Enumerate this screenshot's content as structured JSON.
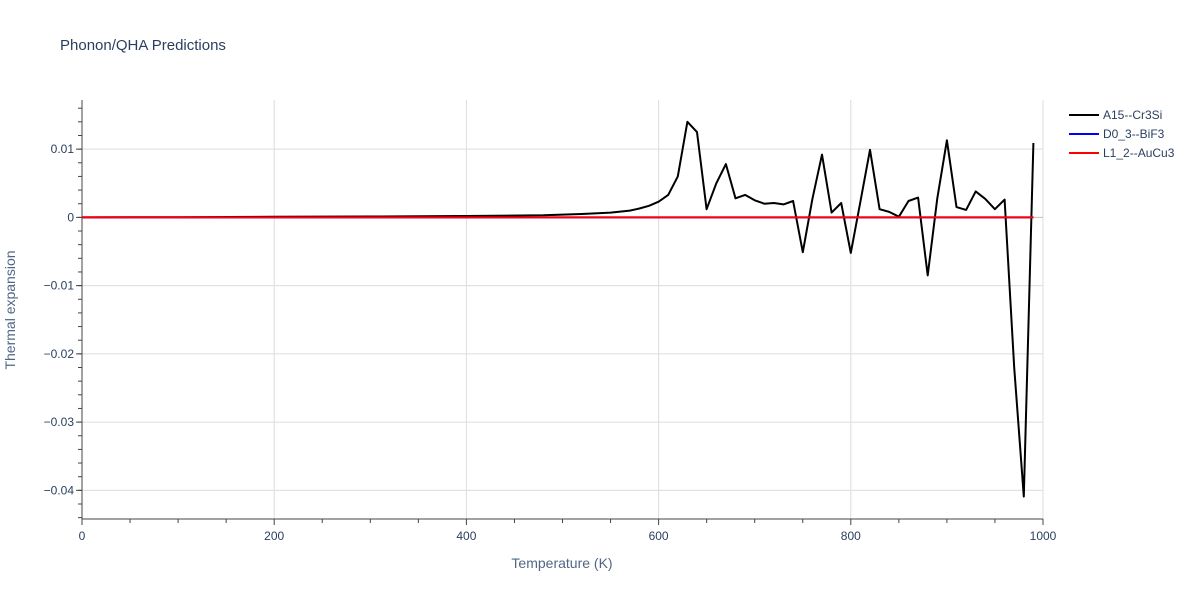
{
  "chart_data": {
    "type": "line",
    "title": "Phonon/QHA Predictions",
    "xlabel": "Temperature (K)",
    "ylabel": "Thermal expansion",
    "xlim": [
      0,
      1000
    ],
    "ylim": [
      -0.0442,
      0.0172
    ],
    "x_ticks": [
      0,
      200,
      400,
      600,
      800,
      1000
    ],
    "x_tick_labels": [
      "0",
      "200",
      "400",
      "600",
      "800",
      "1000"
    ],
    "y_ticks": [
      0.01,
      0,
      -0.01,
      -0.02,
      -0.03,
      -0.04
    ],
    "y_tick_labels": [
      "0.01",
      "0",
      "−0.01",
      "−0.02",
      "−0.03",
      "−0.04"
    ],
    "grid": true,
    "legend_position": "top-right",
    "series": [
      {
        "name": "A15--Cr3Si",
        "color": "#000000",
        "x": [
          0,
          100,
          200,
          300,
          400,
          480,
          520,
          550,
          570,
          580,
          590,
          600,
          610,
          620,
          630,
          640,
          650,
          660,
          670,
          680,
          690,
          700,
          710,
          720,
          730,
          740,
          750,
          760,
          770,
          780,
          790,
          800,
          810,
          820,
          830,
          840,
          850,
          860,
          870,
          880,
          890,
          900,
          910,
          920,
          930,
          940,
          950,
          960,
          970,
          980,
          990
        ],
        "y": [
          0,
          3e-05,
          8e-05,
          0.00013,
          0.0002,
          0.0003,
          0.0005,
          0.0007,
          0.001,
          0.0013,
          0.0017,
          0.0023,
          0.0033,
          0.006,
          0.014,
          0.0125,
          0.0012,
          0.005,
          0.0078,
          0.0028,
          0.0033,
          0.0025,
          0.002,
          0.0021,
          0.0019,
          0.0024,
          -0.0051,
          0.0027,
          0.0092,
          0.0007,
          0.0021,
          -0.0052,
          0.0023,
          0.0099,
          0.0012,
          0.0008,
          0.0001,
          0.0024,
          0.0029,
          -0.0085,
          0.0028,
          0.0113,
          0.0015,
          0.0011,
          0.0038,
          0.0027,
          0.0012,
          0.0026,
          -0.022,
          -0.0409,
          0.0109
        ]
      },
      {
        "name": "D0_3--BiF3",
        "color": "#0000ff",
        "x": [
          0,
          990
        ],
        "y": [
          0,
          0
        ]
      },
      {
        "name": "L1_2--AuCu3",
        "color": "#ff0000",
        "x": [
          0,
          990
        ],
        "y": [
          0,
          0
        ]
      }
    ]
  }
}
